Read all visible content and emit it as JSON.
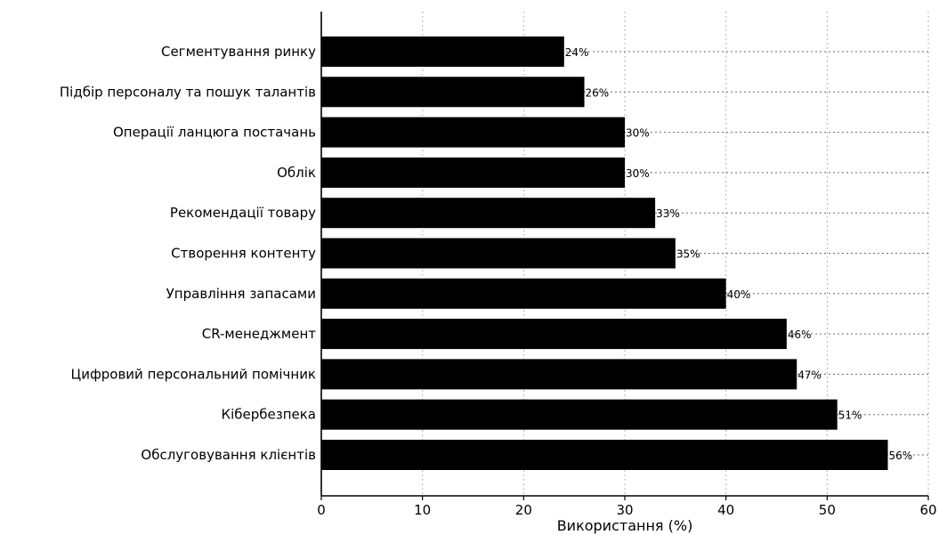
{
  "chart_data": {
    "type": "bar",
    "orientation": "horizontal",
    "categories": [
      "Сегментування ринку",
      "Підбір персоналу та пошук талантів",
      "Операції ланцюга постачань",
      "Облік",
      "Рекомендації товару",
      "Створення контенту",
      "Управління запасами",
      "CR-менеджмент",
      "Цифровий персональний помічник",
      "Кібербезпека",
      "Обслуговування клієнтів"
    ],
    "values": [
      24,
      26,
      30,
      30,
      33,
      35,
      40,
      46,
      47,
      51,
      56
    ],
    "data_labels": [
      "24%",
      "26%",
      "30%",
      "30%",
      "33%",
      "35%",
      "40%",
      "46%",
      "47%",
      "51%",
      "56%"
    ],
    "xlabel": "Використання (%)",
    "ylabel": "",
    "xlim": [
      0,
      60
    ],
    "xticks": [
      0,
      10,
      20,
      30,
      40,
      50,
      60
    ],
    "grid": true,
    "bar_color": "#000000"
  }
}
